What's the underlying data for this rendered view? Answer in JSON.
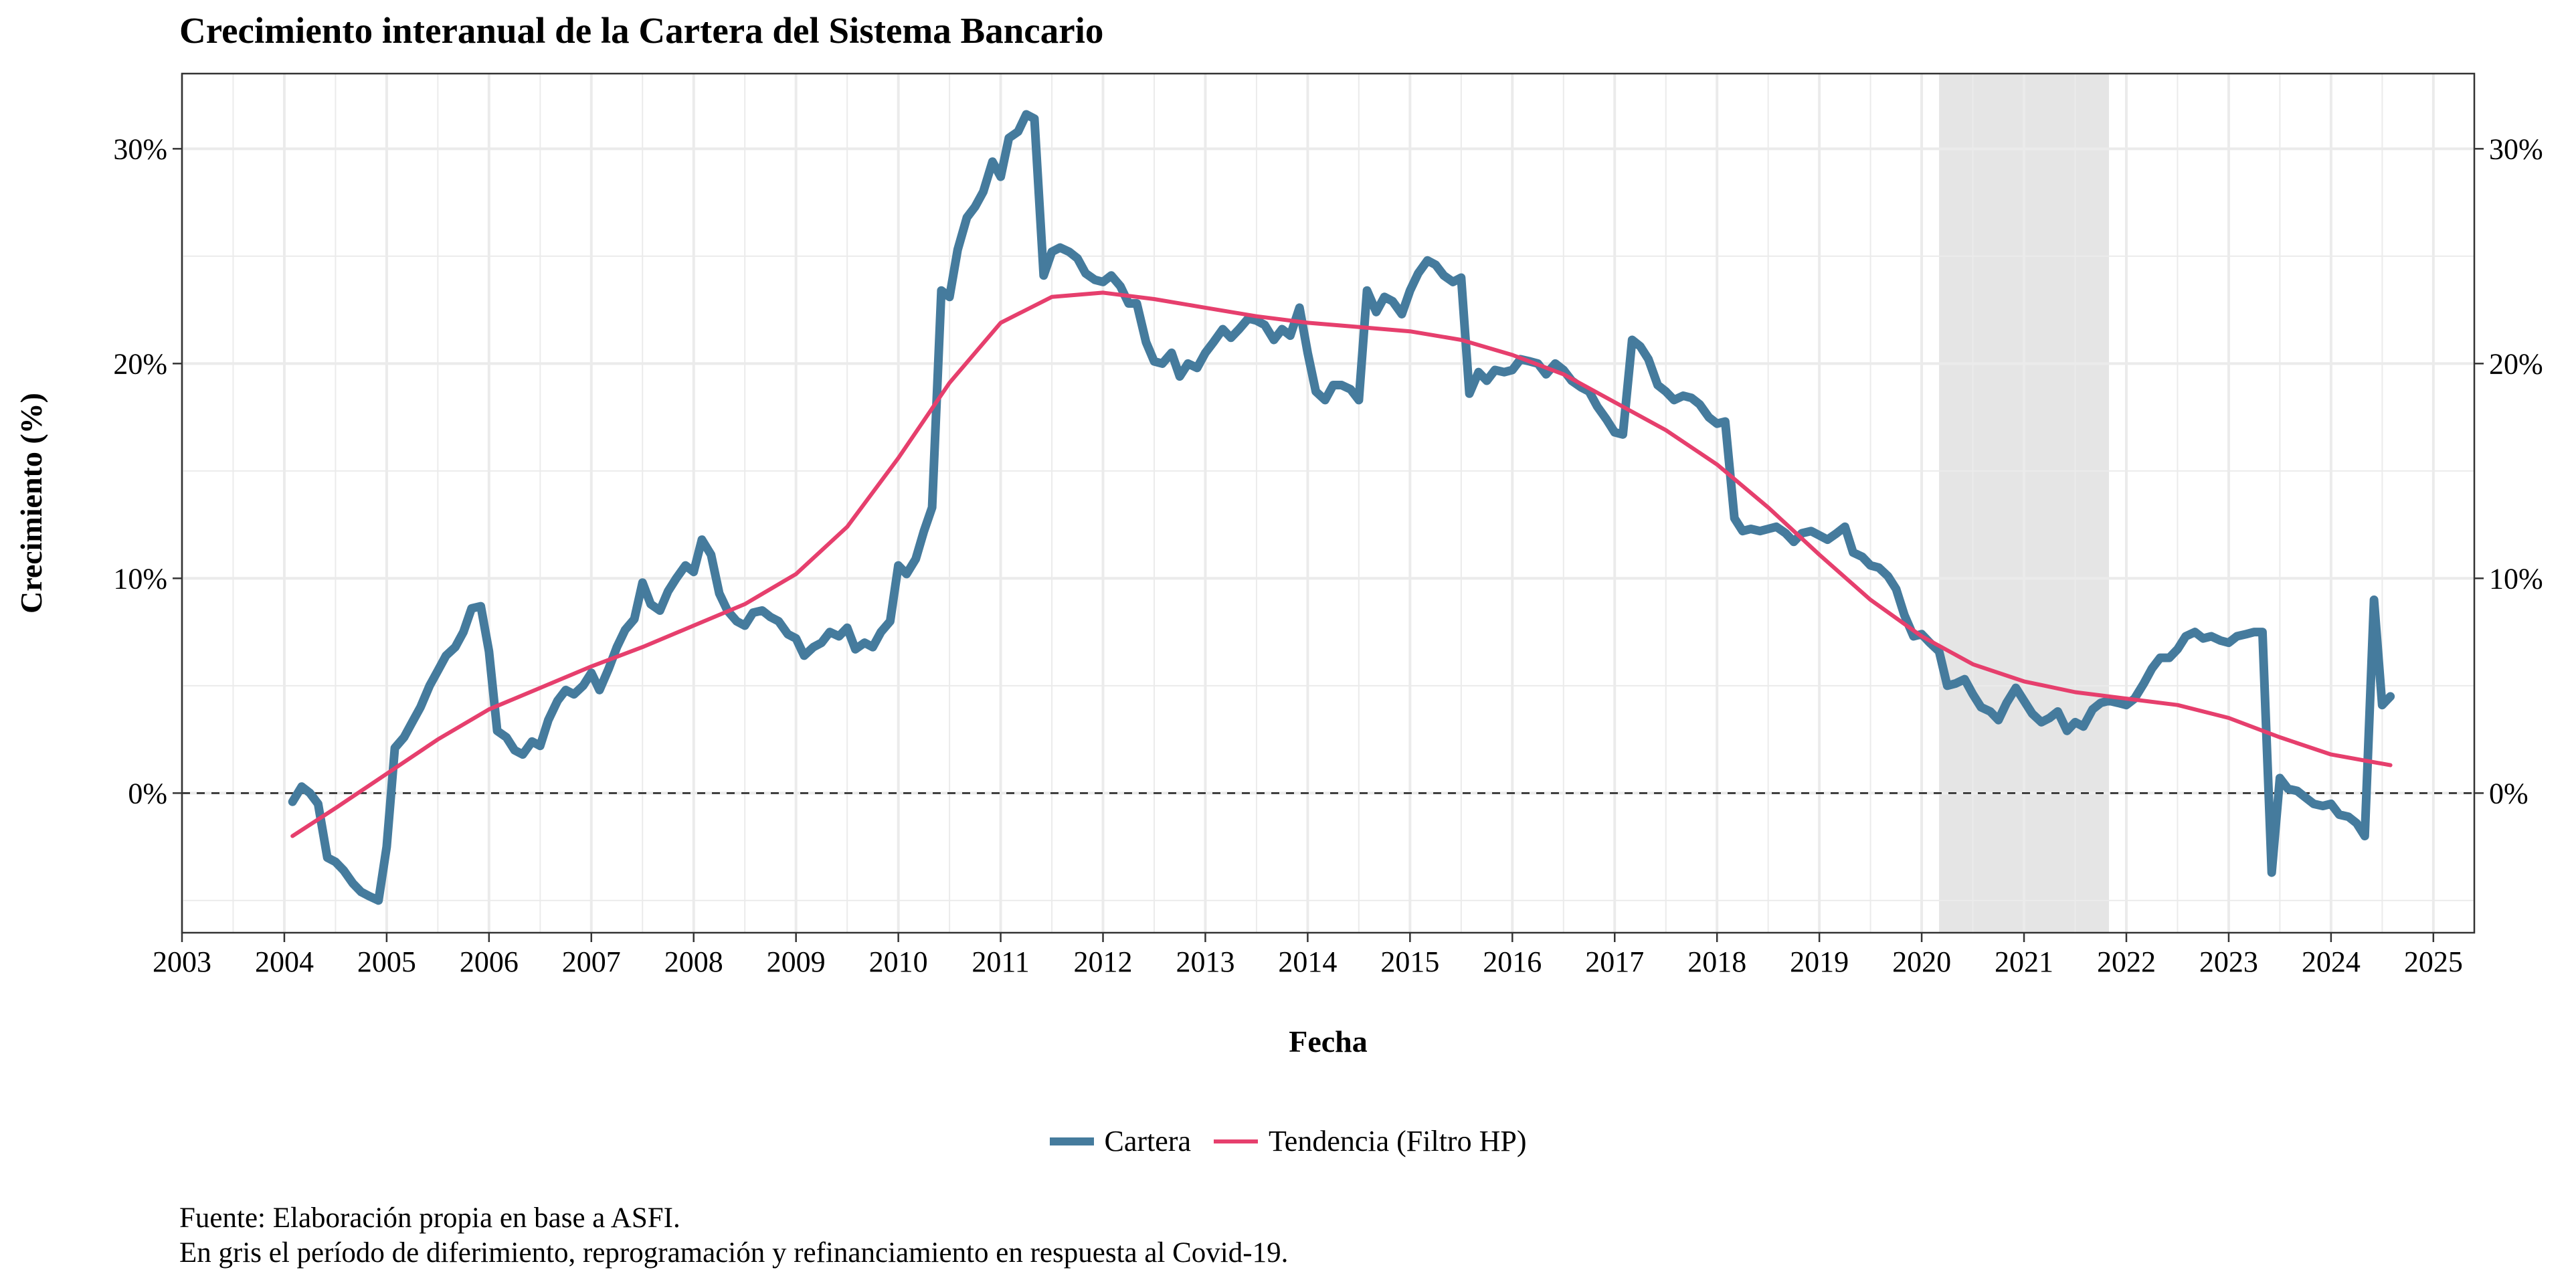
{
  "chart_data": {
    "type": "line",
    "title": "Crecimiento interanual de la Cartera del Sistema Bancario",
    "xlabel": "Fecha",
    "ylabel": "Crecimiento (%)",
    "xlim": [
      2003,
      2025.4
    ],
    "ylim": [
      -6.5,
      33.5
    ],
    "x_ticks": [
      "2003",
      "2004",
      "2005",
      "2006",
      "2007",
      "2008",
      "2009",
      "2010",
      "2011",
      "2012",
      "2013",
      "2014",
      "2015",
      "2016",
      "2017",
      "2018",
      "2019",
      "2020",
      "2021",
      "2022",
      "2023",
      "2024",
      "2025"
    ],
    "y_ticks": [
      {
        "value": 0,
        "label": "0%"
      },
      {
        "value": 10,
        "label": "10%"
      },
      {
        "value": 20,
        "label": "20%"
      },
      {
        "value": 30,
        "label": "30%"
      }
    ],
    "grid": true,
    "secondary_y_axis": true,
    "reference_line": {
      "y": 0,
      "style": "dashed"
    },
    "shaded_period": {
      "x_start": 2020.17,
      "x_end": 2021.83,
      "color": "#e5e5e5"
    },
    "legend_position": "bottom",
    "series": [
      {
        "name": "Cartera",
        "color": "#457b9d",
        "points": [
          [
            2004.08,
            -0.4
          ],
          [
            2004.17,
            0.3
          ],
          [
            2004.25,
            0.0
          ],
          [
            2004.33,
            -0.5
          ],
          [
            2004.42,
            -3.0
          ],
          [
            2004.5,
            -3.2
          ],
          [
            2004.58,
            -3.6
          ],
          [
            2004.67,
            -4.2
          ],
          [
            2004.75,
            -4.6
          ],
          [
            2004.83,
            -4.8
          ],
          [
            2004.92,
            -5.0
          ],
          [
            2005.0,
            -2.5
          ],
          [
            2005.08,
            2.1
          ],
          [
            2005.17,
            2.6
          ],
          [
            2005.25,
            3.3
          ],
          [
            2005.33,
            4.0
          ],
          [
            2005.42,
            5.0
          ],
          [
            2005.5,
            5.7
          ],
          [
            2005.58,
            6.4
          ],
          [
            2005.67,
            6.8
          ],
          [
            2005.75,
            7.5
          ],
          [
            2005.83,
            8.6
          ],
          [
            2005.92,
            8.7
          ],
          [
            2006.0,
            6.6
          ],
          [
            2006.08,
            2.9
          ],
          [
            2006.17,
            2.6
          ],
          [
            2006.25,
            2.0
          ],
          [
            2006.33,
            1.8
          ],
          [
            2006.42,
            2.4
          ],
          [
            2006.5,
            2.2
          ],
          [
            2006.58,
            3.4
          ],
          [
            2006.67,
            4.3
          ],
          [
            2006.75,
            4.8
          ],
          [
            2006.83,
            4.6
          ],
          [
            2006.92,
            5.0
          ],
          [
            2007.0,
            5.6
          ],
          [
            2007.08,
            4.8
          ],
          [
            2007.17,
            5.8
          ],
          [
            2007.25,
            6.8
          ],
          [
            2007.33,
            7.6
          ],
          [
            2007.42,
            8.1
          ],
          [
            2007.5,
            9.8
          ],
          [
            2007.58,
            8.8
          ],
          [
            2007.67,
            8.5
          ],
          [
            2007.75,
            9.4
          ],
          [
            2007.83,
            10.0
          ],
          [
            2007.92,
            10.6
          ],
          [
            2008.0,
            10.3
          ],
          [
            2008.08,
            11.8
          ],
          [
            2008.17,
            11.1
          ],
          [
            2008.25,
            9.3
          ],
          [
            2008.33,
            8.5
          ],
          [
            2008.42,
            8.0
          ],
          [
            2008.5,
            7.8
          ],
          [
            2008.58,
            8.4
          ],
          [
            2008.67,
            8.5
          ],
          [
            2008.75,
            8.2
          ],
          [
            2008.83,
            8.0
          ],
          [
            2008.92,
            7.4
          ],
          [
            2009.0,
            7.2
          ],
          [
            2009.08,
            6.4
          ],
          [
            2009.17,
            6.8
          ],
          [
            2009.25,
            7.0
          ],
          [
            2009.33,
            7.5
          ],
          [
            2009.42,
            7.3
          ],
          [
            2009.5,
            7.7
          ],
          [
            2009.58,
            6.7
          ],
          [
            2009.67,
            7.0
          ],
          [
            2009.75,
            6.8
          ],
          [
            2009.83,
            7.5
          ],
          [
            2009.92,
            8.0
          ],
          [
            2010.0,
            10.6
          ],
          [
            2010.08,
            10.2
          ],
          [
            2010.17,
            10.9
          ],
          [
            2010.25,
            12.2
          ],
          [
            2010.33,
            13.3
          ],
          [
            2010.42,
            23.4
          ],
          [
            2010.5,
            23.1
          ],
          [
            2010.58,
            25.3
          ],
          [
            2010.67,
            26.8
          ],
          [
            2010.75,
            27.3
          ],
          [
            2010.83,
            28.0
          ],
          [
            2010.92,
            29.4
          ],
          [
            2011.0,
            28.7
          ],
          [
            2011.08,
            30.5
          ],
          [
            2011.17,
            30.8
          ],
          [
            2011.25,
            31.6
          ],
          [
            2011.33,
            31.4
          ],
          [
            2011.42,
            24.1
          ],
          [
            2011.5,
            25.2
          ],
          [
            2011.58,
            25.4
          ],
          [
            2011.67,
            25.2
          ],
          [
            2011.75,
            24.9
          ],
          [
            2011.83,
            24.2
          ],
          [
            2011.92,
            23.9
          ],
          [
            2012.0,
            23.8
          ],
          [
            2012.08,
            24.1
          ],
          [
            2012.17,
            23.6
          ],
          [
            2012.25,
            22.8
          ],
          [
            2012.33,
            22.8
          ],
          [
            2012.42,
            21.0
          ],
          [
            2012.5,
            20.1
          ],
          [
            2012.58,
            20.0
          ],
          [
            2012.67,
            20.5
          ],
          [
            2012.75,
            19.4
          ],
          [
            2012.83,
            20.0
          ],
          [
            2012.92,
            19.8
          ],
          [
            2013.0,
            20.5
          ],
          [
            2013.08,
            21.0
          ],
          [
            2013.17,
            21.6
          ],
          [
            2013.25,
            21.2
          ],
          [
            2013.33,
            21.6
          ],
          [
            2013.42,
            22.1
          ],
          [
            2013.5,
            22.0
          ],
          [
            2013.58,
            21.8
          ],
          [
            2013.67,
            21.1
          ],
          [
            2013.75,
            21.6
          ],
          [
            2013.83,
            21.3
          ],
          [
            2013.92,
            22.6
          ],
          [
            2014.0,
            20.5
          ],
          [
            2014.08,
            18.7
          ],
          [
            2014.17,
            18.3
          ],
          [
            2014.25,
            19.0
          ],
          [
            2014.33,
            19.0
          ],
          [
            2014.42,
            18.8
          ],
          [
            2014.5,
            18.3
          ],
          [
            2014.58,
            23.4
          ],
          [
            2014.67,
            22.4
          ],
          [
            2014.75,
            23.1
          ],
          [
            2014.83,
            22.9
          ],
          [
            2014.92,
            22.3
          ],
          [
            2015.0,
            23.4
          ],
          [
            2015.08,
            24.2
          ],
          [
            2015.17,
            24.8
          ],
          [
            2015.25,
            24.6
          ],
          [
            2015.33,
            24.1
          ],
          [
            2015.42,
            23.8
          ],
          [
            2015.5,
            24.0
          ],
          [
            2015.58,
            18.6
          ],
          [
            2015.67,
            19.6
          ],
          [
            2015.75,
            19.2
          ],
          [
            2015.83,
            19.7
          ],
          [
            2015.92,
            19.6
          ],
          [
            2016.0,
            19.7
          ],
          [
            2016.08,
            20.2
          ],
          [
            2016.17,
            20.1
          ],
          [
            2016.25,
            20.0
          ],
          [
            2016.33,
            19.5
          ],
          [
            2016.42,
            20.0
          ],
          [
            2016.5,
            19.7
          ],
          [
            2016.58,
            19.2
          ],
          [
            2016.67,
            18.9
          ],
          [
            2016.75,
            18.7
          ],
          [
            2016.83,
            18.0
          ],
          [
            2016.92,
            17.4
          ],
          [
            2017.0,
            16.8
          ],
          [
            2017.08,
            16.7
          ],
          [
            2017.17,
            21.1
          ],
          [
            2017.25,
            20.8
          ],
          [
            2017.33,
            20.2
          ],
          [
            2017.42,
            19.0
          ],
          [
            2017.5,
            18.7
          ],
          [
            2017.58,
            18.3
          ],
          [
            2017.67,
            18.5
          ],
          [
            2017.75,
            18.4
          ],
          [
            2017.83,
            18.1
          ],
          [
            2017.92,
            17.5
          ],
          [
            2018.0,
            17.2
          ],
          [
            2018.08,
            17.3
          ],
          [
            2018.17,
            12.8
          ],
          [
            2018.25,
            12.2
          ],
          [
            2018.33,
            12.3
          ],
          [
            2018.42,
            12.2
          ],
          [
            2018.5,
            12.3
          ],
          [
            2018.58,
            12.4
          ],
          [
            2018.67,
            12.1
          ],
          [
            2018.75,
            11.7
          ],
          [
            2018.83,
            12.1
          ],
          [
            2018.92,
            12.2
          ],
          [
            2019.0,
            12.0
          ],
          [
            2019.08,
            11.8
          ],
          [
            2019.17,
            12.1
          ],
          [
            2019.25,
            12.4
          ],
          [
            2019.33,
            11.2
          ],
          [
            2019.42,
            11.0
          ],
          [
            2019.5,
            10.6
          ],
          [
            2019.58,
            10.5
          ],
          [
            2019.67,
            10.1
          ],
          [
            2019.75,
            9.5
          ],
          [
            2019.83,
            8.3
          ],
          [
            2019.92,
            7.3
          ],
          [
            2020.0,
            7.4
          ],
          [
            2020.08,
            7.0
          ],
          [
            2020.17,
            6.6
          ],
          [
            2020.25,
            5.0
          ],
          [
            2020.33,
            5.1
          ],
          [
            2020.42,
            5.3
          ],
          [
            2020.5,
            4.6
          ],
          [
            2020.58,
            4.0
          ],
          [
            2020.67,
            3.8
          ],
          [
            2020.75,
            3.4
          ],
          [
            2020.83,
            4.2
          ],
          [
            2020.92,
            4.9
          ],
          [
            2021.0,
            4.3
          ],
          [
            2021.08,
            3.7
          ],
          [
            2021.17,
            3.3
          ],
          [
            2021.25,
            3.5
          ],
          [
            2021.33,
            3.8
          ],
          [
            2021.42,
            2.9
          ],
          [
            2021.5,
            3.3
          ],
          [
            2021.58,
            3.1
          ],
          [
            2021.67,
            3.9
          ],
          [
            2021.75,
            4.2
          ],
          [
            2021.83,
            4.3
          ],
          [
            2021.92,
            4.2
          ],
          [
            2022.0,
            4.1
          ],
          [
            2022.08,
            4.4
          ],
          [
            2022.17,
            5.1
          ],
          [
            2022.25,
            5.8
          ],
          [
            2022.33,
            6.3
          ],
          [
            2022.42,
            6.3
          ],
          [
            2022.5,
            6.7
          ],
          [
            2022.58,
            7.3
          ],
          [
            2022.67,
            7.5
          ],
          [
            2022.75,
            7.2
          ],
          [
            2022.83,
            7.3
          ],
          [
            2022.92,
            7.1
          ],
          [
            2023.0,
            7.0
          ],
          [
            2023.08,
            7.3
          ],
          [
            2023.17,
            7.4
          ],
          [
            2023.25,
            7.5
          ],
          [
            2023.33,
            7.5
          ],
          [
            2023.42,
            -3.7
          ],
          [
            2023.5,
            0.7
          ],
          [
            2023.58,
            0.2
          ],
          [
            2023.67,
            0.1
          ],
          [
            2023.75,
            -0.2
          ],
          [
            2023.83,
            -0.5
          ],
          [
            2023.92,
            -0.6
          ],
          [
            2024.0,
            -0.5
          ],
          [
            2024.08,
            -1.0
          ],
          [
            2024.17,
            -1.1
          ],
          [
            2024.25,
            -1.4
          ],
          [
            2024.33,
            -2.0
          ],
          [
            2024.42,
            9.0
          ],
          [
            2024.5,
            4.1
          ],
          [
            2024.58,
            4.5
          ]
        ]
      },
      {
        "name": "Tendencia (Filtro HP)",
        "color": "#e63f6d",
        "points": [
          [
            2004.08,
            -2.0
          ],
          [
            2004.5,
            -0.7
          ],
          [
            2005.0,
            0.9
          ],
          [
            2005.5,
            2.5
          ],
          [
            2006.0,
            3.9
          ],
          [
            2006.5,
            4.9
          ],
          [
            2007.0,
            5.9
          ],
          [
            2007.5,
            6.8
          ],
          [
            2008.0,
            7.8
          ],
          [
            2008.5,
            8.8
          ],
          [
            2009.0,
            10.2
          ],
          [
            2009.5,
            12.4
          ],
          [
            2010.0,
            15.6
          ],
          [
            2010.5,
            19.1
          ],
          [
            2011.0,
            21.9
          ],
          [
            2011.5,
            23.1
          ],
          [
            2012.0,
            23.3
          ],
          [
            2012.5,
            23.0
          ],
          [
            2013.0,
            22.6
          ],
          [
            2013.5,
            22.2
          ],
          [
            2014.0,
            21.9
          ],
          [
            2014.5,
            21.7
          ],
          [
            2015.0,
            21.5
          ],
          [
            2015.5,
            21.1
          ],
          [
            2016.0,
            20.4
          ],
          [
            2016.5,
            19.5
          ],
          [
            2017.0,
            18.2
          ],
          [
            2017.5,
            16.9
          ],
          [
            2018.0,
            15.3
          ],
          [
            2018.5,
            13.3
          ],
          [
            2019.0,
            11.1
          ],
          [
            2019.5,
            9.0
          ],
          [
            2020.0,
            7.3
          ],
          [
            2020.5,
            6.0
          ],
          [
            2021.0,
            5.2
          ],
          [
            2021.5,
            4.7
          ],
          [
            2022.0,
            4.4
          ],
          [
            2022.5,
            4.1
          ],
          [
            2023.0,
            3.5
          ],
          [
            2023.5,
            2.6
          ],
          [
            2024.0,
            1.8
          ],
          [
            2024.58,
            1.3
          ]
        ]
      }
    ]
  },
  "caption": {
    "line1": "Fuente: Elaboración propia en base a ASFI.",
    "line2": "En gris el período de diferimiento, reprogramación y refinanciamiento en respuesta al Covid-19."
  }
}
